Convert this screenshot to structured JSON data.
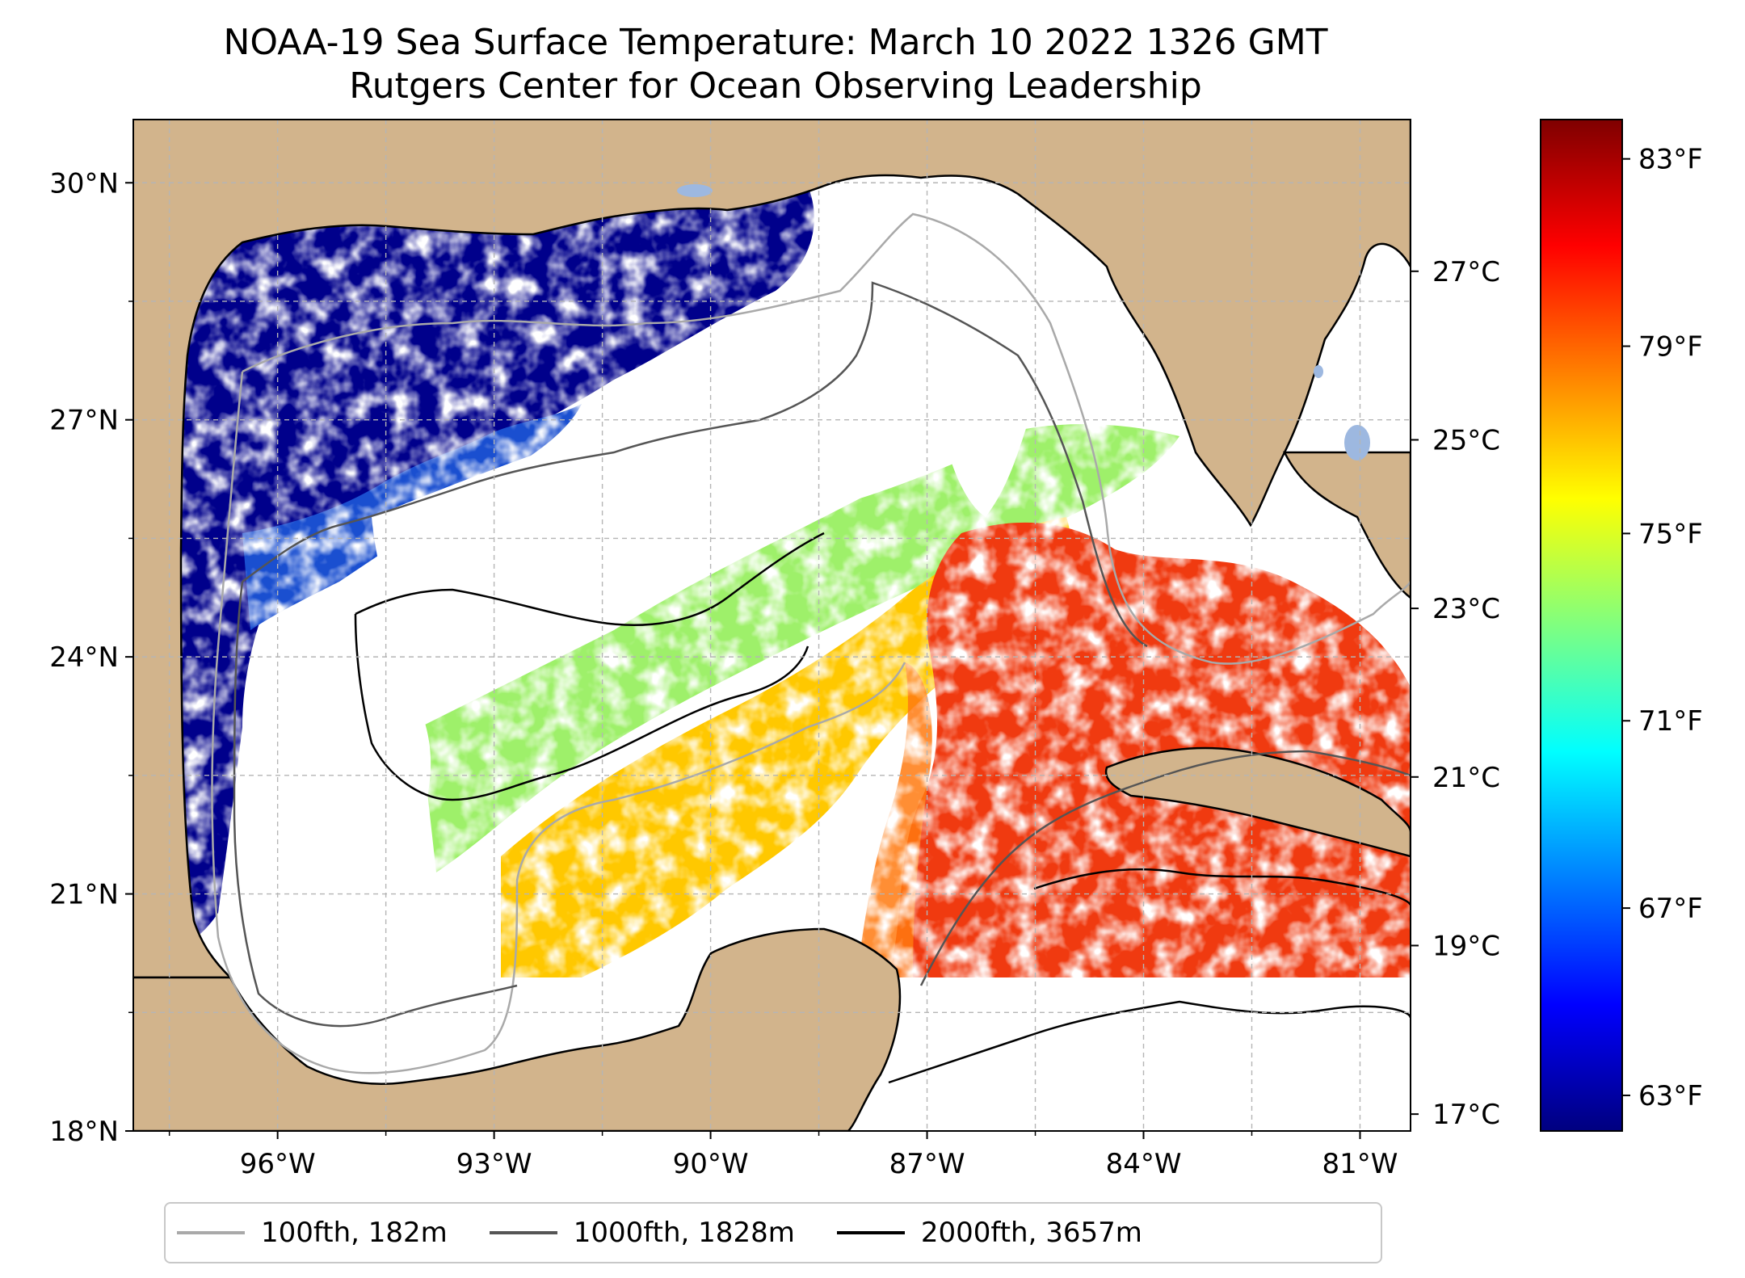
{
  "title": "NOAA-19 Sea Surface Temperature: March 10 2022 1326 GMT",
  "subtitle": "Rutgers Center for Ocean Observing Leadership",
  "map": {
    "lon_range": [
      -98,
      -80.3
    ],
    "lat_range": [
      18,
      30.8
    ],
    "lat_ticks": [
      {
        "value": 30,
        "label": "30°N"
      },
      {
        "value": 27,
        "label": "27°N"
      },
      {
        "value": 24,
        "label": "24°N"
      },
      {
        "value": 21,
        "label": "21°N"
      },
      {
        "value": 18,
        "label": "18°N"
      }
    ],
    "lon_ticks": [
      {
        "value": -96,
        "label": "96°W"
      },
      {
        "value": -93,
        "label": "93°W"
      },
      {
        "value": -90,
        "label": "90°W"
      },
      {
        "value": -87,
        "label": "87°W"
      },
      {
        "value": -84,
        "label": "84°W"
      },
      {
        "value": -81,
        "label": "81°W"
      }
    ],
    "gridlines": true,
    "land_color": "#d2b48c",
    "lake_color": "#9db8e0"
  },
  "colorbar": {
    "cmap": "jet",
    "range_c": [
      16.8,
      28.8
    ],
    "celsius_ticks": [
      {
        "value": 27,
        "label": "27°C"
      },
      {
        "value": 25,
        "label": "25°C"
      },
      {
        "value": 23,
        "label": "23°C"
      },
      {
        "value": 21,
        "label": "21°C"
      },
      {
        "value": 19,
        "label": "19°C"
      },
      {
        "value": 17,
        "label": "17°C"
      }
    ],
    "fahrenheit_ticks": [
      {
        "value": 83,
        "label": "83°F"
      },
      {
        "value": 79,
        "label": "79°F"
      },
      {
        "value": 75,
        "label": "75°F"
      },
      {
        "value": 71,
        "label": "71°F"
      },
      {
        "value": 67,
        "label": "67°F"
      },
      {
        "value": 63,
        "label": "63°F"
      }
    ]
  },
  "legend": {
    "placement": "bottom-center",
    "items": [
      {
        "label": "100fth, 182m",
        "color": "#a9a9a9"
      },
      {
        "label": "1000fth, 1828m",
        "color": "#555555"
      },
      {
        "label": "2000fth, 3657m",
        "color": "#000000"
      }
    ]
  }
}
